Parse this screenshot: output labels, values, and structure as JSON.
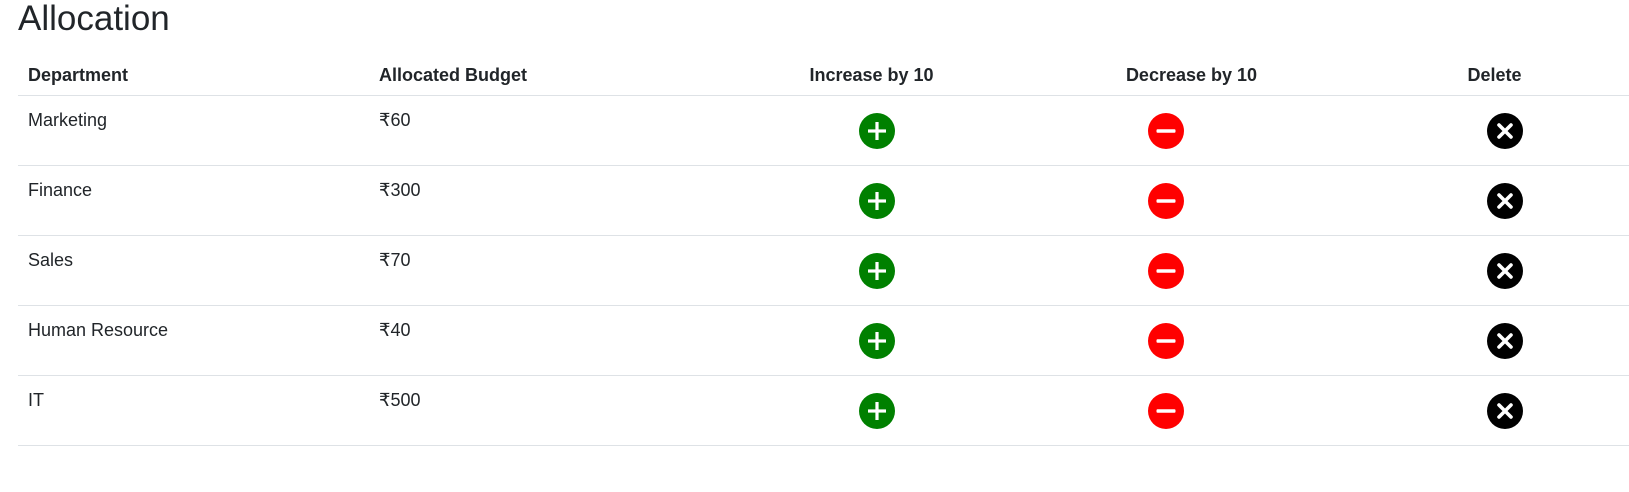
{
  "page": {
    "title": "Allocation"
  },
  "table": {
    "headers": {
      "department": "Department",
      "budget": "Allocated Budget",
      "increase": "Increase by 10",
      "decrease": "Decrease by 10",
      "delete": "Delete"
    },
    "rows": [
      {
        "department": "Marketing",
        "budget": "₹60"
      },
      {
        "department": "Finance",
        "budget": "₹300"
      },
      {
        "department": "Sales",
        "budget": "₹70"
      },
      {
        "department": "Human Resource",
        "budget": "₹40"
      },
      {
        "department": "IT",
        "budget": "₹500"
      }
    ]
  },
  "icons": {
    "increase": "plus-circle-icon",
    "decrease": "minus-circle-icon",
    "delete": "x-circle-icon"
  },
  "colors": {
    "increase": "#008000",
    "decrease": "#ff0000",
    "delete": "#000000"
  }
}
